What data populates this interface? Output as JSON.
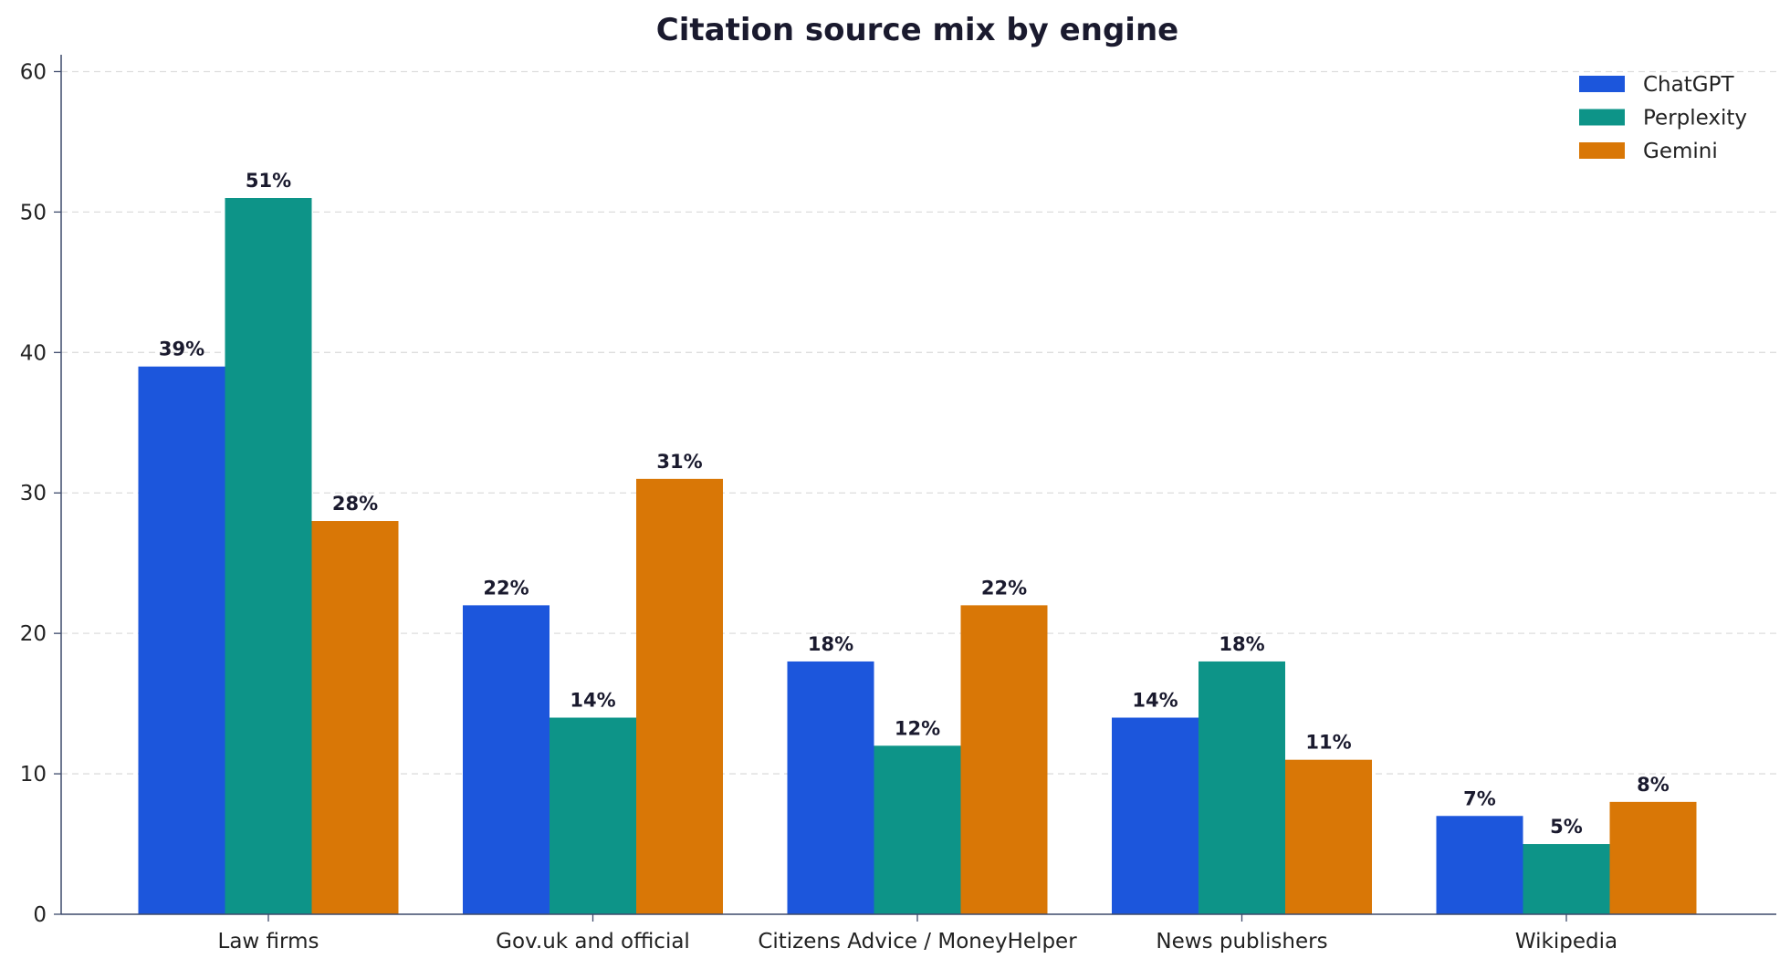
{
  "chart_data": {
    "type": "bar",
    "title": "Citation source mix by engine",
    "xlabel": "",
    "ylabel": "",
    "categories": [
      "Law firms",
      "Gov.uk and official",
      "Citizens Advice / MoneyHelper",
      "News publishers",
      "Wikipedia"
    ],
    "series": [
      {
        "name": "ChatGPT",
        "color": "#1c56dc",
        "values": [
          39,
          22,
          18,
          14,
          7
        ]
      },
      {
        "name": "Perplexity",
        "color": "#0d9488",
        "values": [
          51,
          14,
          12,
          18,
          5
        ]
      },
      {
        "name": "Gemini",
        "color": "#d97706",
        "values": [
          28,
          31,
          22,
          11,
          8
        ]
      }
    ],
    "value_label_suffix": "%",
    "ylim": [
      0,
      61.2
    ],
    "yticks": [
      0,
      10,
      20,
      30,
      40,
      50,
      60
    ],
    "grid": "horizontal dashed",
    "legend_position": "top-right"
  }
}
